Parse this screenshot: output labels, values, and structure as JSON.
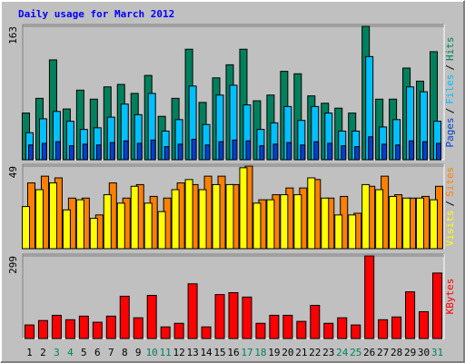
{
  "chart_data": [
    {
      "type": "bar",
      "title": "Daily usage for March 2012",
      "legend_separator": "/",
      "ylim": [
        0,
        163
      ],
      "yticks": [
        163
      ],
      "series": [
        {
          "name": "Hits",
          "color": "#00805c",
          "values": [
            57,
            75,
            122,
            62,
            85,
            74,
            89,
            92,
            81,
            103,
            53,
            75,
            135,
            70,
            100,
            116,
            135,
            72,
            79,
            108,
            105,
            78,
            69,
            63,
            57,
            163,
            74,
            74,
            112,
            96,
            132
          ]
        },
        {
          "name": "Files",
          "color": "#00c0ff",
          "values": [
            33,
            50,
            59,
            47,
            37,
            39,
            52,
            68,
            55,
            81,
            35,
            49,
            90,
            43,
            79,
            91,
            67,
            37,
            45,
            65,
            48,
            65,
            57,
            35,
            35,
            126,
            40,
            49,
            89,
            83,
            47
          ]
        },
        {
          "name": "Pages",
          "color": "#0040d0",
          "values": [
            18,
            20,
            22,
            17,
            19,
            18,
            21,
            23,
            20,
            24,
            16,
            19,
            25,
            18,
            22,
            24,
            23,
            17,
            19,
            21,
            18,
            22,
            20,
            17,
            16,
            28,
            19,
            18,
            23,
            22,
            20
          ]
        }
      ]
    },
    {
      "type": "bar",
      "legend_separator": "/",
      "ylim": [
        0,
        49
      ],
      "yticks": [
        49
      ],
      "series": [
        {
          "name": "Sites",
          "color": "#ff8000",
          "values": [
            39,
            43,
            42,
            30,
            30,
            20,
            39,
            30,
            38,
            31,
            30,
            39,
            38,
            43,
            43,
            38,
            49,
            29,
            32,
            36,
            36,
            41,
            30,
            31,
            21,
            37,
            43,
            32,
            30,
            31,
            37
          ]
        },
        {
          "name": "Visits",
          "color": "#ffff00",
          "values": [
            25,
            35,
            39,
            23,
            29,
            18,
            32,
            27,
            37,
            27,
            22,
            35,
            41,
            35,
            38,
            38,
            48,
            27,
            29,
            32,
            32,
            42,
            30,
            20,
            20,
            38,
            35,
            31,
            30,
            30,
            29
          ]
        }
      ]
    },
    {
      "type": "bar",
      "ylim": [
        0,
        299
      ],
      "yticks": [
        299
      ],
      "categories": [
        "1",
        "2",
        "3",
        "4",
        "5",
        "6",
        "7",
        "8",
        "9",
        "10",
        "11",
        "12",
        "13",
        "14",
        "15",
        "16",
        "17",
        "18",
        "19",
        "20",
        "21",
        "22",
        "23",
        "24",
        "25",
        "26",
        "27",
        "28",
        "29",
        "30",
        "31"
      ],
      "category_colors": [
        "#000000",
        "#000000",
        "#00805c",
        "#00805c",
        "#000000",
        "#000000",
        "#000000",
        "#000000",
        "#000000",
        "#00805c",
        "#00805c",
        "#000000",
        "#000000",
        "#000000",
        "#000000",
        "#000000",
        "#00805c",
        "#00805c",
        "#000000",
        "#000000",
        "#000000",
        "#000000",
        "#000000",
        "#00805c",
        "#00805c",
        "#000000",
        "#000000",
        "#000000",
        "#000000",
        "#000000",
        "#00805c"
      ],
      "series": [
        {
          "name": "KBytes",
          "color": "#ff0000",
          "values": [
            49,
            65,
            84,
            68,
            81,
            59,
            81,
            153,
            75,
            156,
            42,
            55,
            198,
            42,
            159,
            166,
            150,
            55,
            84,
            84,
            62,
            120,
            55,
            75,
            49,
            299,
            68,
            78,
            169,
            97,
            237
          ]
        }
      ]
    }
  ]
}
